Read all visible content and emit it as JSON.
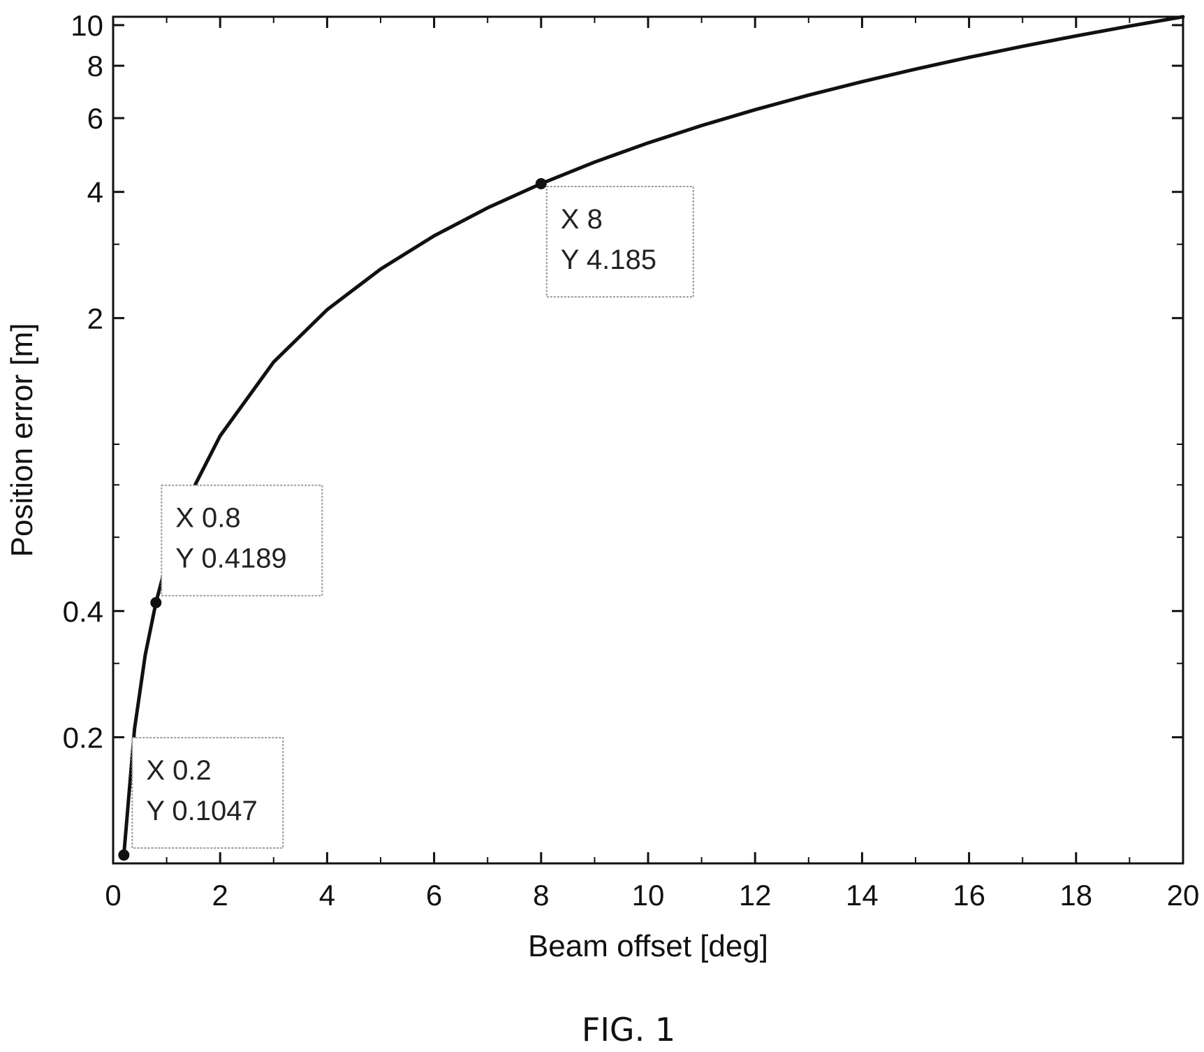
{
  "chart_data": {
    "type": "line",
    "title": "",
    "xlabel": "Beam offset [deg]",
    "ylabel": "Position error [m]",
    "xlim": [
      0,
      20
    ],
    "ylim": [
      0.1,
      10.47
    ],
    "y_scale": "log",
    "grid": false,
    "x_ticks": [
      0,
      2,
      4,
      6,
      8,
      10,
      12,
      14,
      16,
      18,
      20
    ],
    "x_tick_labels": [
      "0",
      "2",
      "4",
      "6",
      "8",
      "10",
      "12",
      "14",
      "16",
      "18",
      "20"
    ],
    "y_ticks": [
      0.2,
      0.4,
      2,
      4,
      6,
      8,
      10
    ],
    "y_tick_labels": [
      "0.2",
      "0.4",
      "2",
      "4",
      "6",
      "8",
      "10"
    ],
    "y_minor_ticks": [
      0.3,
      0.6,
      0.8,
      1,
      3
    ],
    "series": [
      {
        "color": "#111111",
        "x": [
          0.2,
          0.4,
          0.6,
          0.8,
          1,
          1.5,
          2,
          3,
          4,
          5,
          6,
          7,
          8,
          9,
          10,
          11,
          12,
          13,
          14,
          15,
          16,
          17,
          18,
          19,
          20
        ],
        "y": [
          0.1047,
          0.2094,
          0.3142,
          0.4189,
          0.5236,
          0.7854,
          1.047,
          1.571,
          2.094,
          2.618,
          3.142,
          3.665,
          4.185,
          4.712,
          5.236,
          5.76,
          6.283,
          6.807,
          7.33,
          7.854,
          8.378,
          8.901,
          9.425,
          9.948,
          10.47
        ]
      }
    ],
    "annotations": [
      {
        "x": 0.2,
        "y": 0.1047,
        "label_x": "X 0.2",
        "label_y": "Y 0.1047"
      },
      {
        "x": 0.8,
        "y": 0.4189,
        "label_x": "X 0.8",
        "label_y": "Y 0.4189"
      },
      {
        "x": 8,
        "y": 4.185,
        "label_x": "X 8",
        "label_y": "Y 4.185"
      }
    ]
  },
  "caption": "FIG. 1"
}
